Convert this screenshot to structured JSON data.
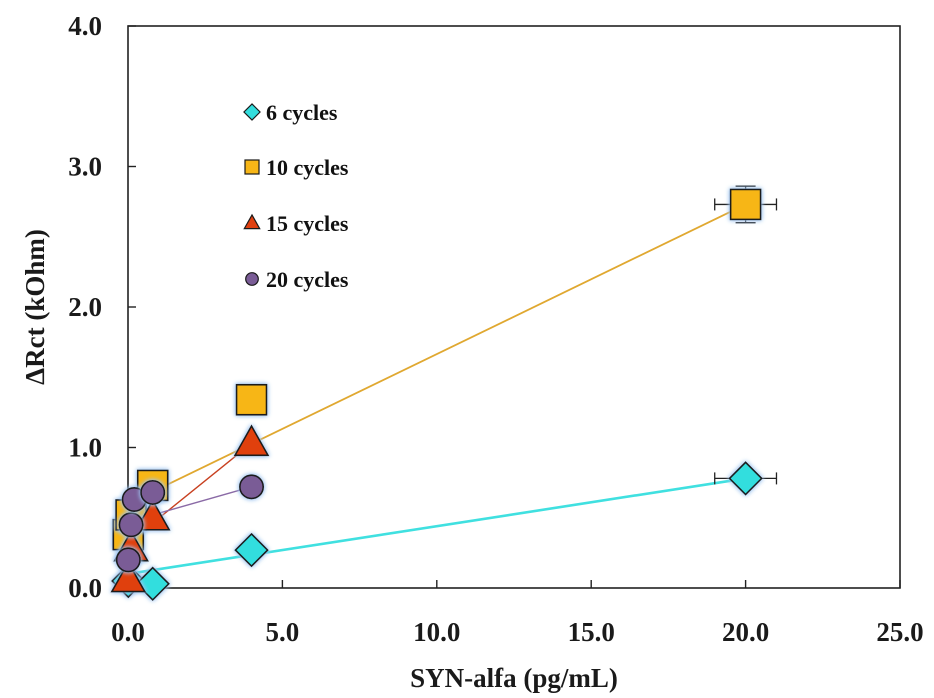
{
  "chart_data": {
    "type": "scatter",
    "xlabel": "SYN-alfa (pg/mL)",
    "ylabel": "ΔRct (kOhm)",
    "xlim": [
      0,
      25
    ],
    "ylim": [
      0,
      4
    ],
    "xticks": [
      0,
      5,
      10,
      15,
      20,
      25
    ],
    "xtick_labels": [
      "0.0",
      "5.0",
      "10.0",
      "15.0",
      "20.0",
      "25.0"
    ],
    "yticks": [
      0,
      1,
      2,
      3,
      4
    ],
    "ytick_labels": [
      "0.0",
      "1.0",
      "2.0",
      "3.0",
      "4.0"
    ],
    "grid": false,
    "legend_position": "top-left",
    "series": [
      {
        "name": "6 cycles",
        "marker": "diamond",
        "color": "#33dede",
        "line_color": "#40e0e0",
        "x": [
          0.01,
          0.8,
          4,
          20
        ],
        "y": [
          0.05,
          0.03,
          0.27,
          0.78
        ],
        "xerr": [
          0,
          0,
          0,
          1.0
        ],
        "yerr": [
          0,
          0,
          0,
          0
        ],
        "fit": [
          [
            0,
            0.1
          ],
          [
            20,
            0.78
          ]
        ]
      },
      {
        "name": "10 cycles",
        "marker": "square",
        "color": "#f7b617",
        "line_color": "#e0a830",
        "x": [
          0.01,
          0.1,
          0.8,
          4,
          20
        ],
        "y": [
          0.38,
          0.52,
          0.73,
          1.34,
          2.73
        ],
        "xerr": [
          0,
          0,
          0,
          0,
          1.0
        ],
        "yerr": [
          0,
          0,
          0,
          0,
          0.13
        ],
        "fit": [
          [
            0,
            0.6
          ],
          [
            20,
            2.73
          ]
        ]
      },
      {
        "name": "15 cycles",
        "marker": "triangle",
        "color": "#e04010",
        "line_color": "#c84020",
        "x": [
          0.01,
          0.1,
          0.8,
          4
        ],
        "y": [
          0.06,
          0.28,
          0.5,
          1.03
        ],
        "xerr": [
          0,
          0,
          0,
          0
        ],
        "yerr": [
          0,
          0,
          0,
          0
        ],
        "fit": [
          [
            0,
            0.32
          ],
          [
            4,
            1.03
          ]
        ]
      },
      {
        "name": "20 cycles",
        "marker": "circle",
        "color": "#7a5c96",
        "line_color": "#8a6aa6",
        "x": [
          0.01,
          0.1,
          0.2,
          0.8,
          4
        ],
        "y": [
          0.2,
          0.45,
          0.63,
          0.68,
          0.72
        ],
        "xerr": [
          0,
          0,
          0,
          0,
          0
        ],
        "yerr": [
          0,
          0,
          0,
          0,
          0
        ],
        "fit": [
          [
            0,
            0.47
          ],
          [
            4,
            0.72
          ]
        ]
      }
    ]
  }
}
